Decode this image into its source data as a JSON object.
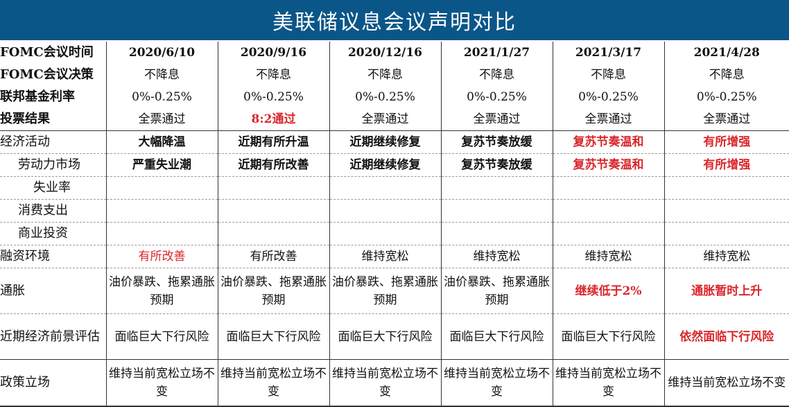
{
  "title": "美联储议息会议声明对比",
  "colors": {
    "header_bg": "#0b5689",
    "highlight": "#d9262b"
  },
  "rows": [
    {
      "label": "FOMC会议时间",
      "cls": "top",
      "cells": [
        {
          "t": "2020/6/10",
          "b": 1
        },
        {
          "t": "2020/9/16",
          "b": 1
        },
        {
          "t": "2020/12/16",
          "b": 1
        },
        {
          "t": "2021/1/27",
          "b": 1
        },
        {
          "t": "2021/3/17",
          "b": 1
        },
        {
          "t": "2021/4/28",
          "b": 1
        }
      ]
    },
    {
      "label": "FOMC会议决策",
      "cls": "top",
      "cells": [
        {
          "t": "不降息"
        },
        {
          "t": "不降息"
        },
        {
          "t": "不降息"
        },
        {
          "t": "不降息"
        },
        {
          "t": "不降息"
        },
        {
          "t": "不降息"
        }
      ]
    },
    {
      "label": "联邦基金利率",
      "cls": "top",
      "cells": [
        {
          "t": "0%-0.25%"
        },
        {
          "t": "0%-0.25%"
        },
        {
          "t": "0%-0.25%"
        },
        {
          "t": "0%-0.25%"
        },
        {
          "t": "0%-0.25%"
        },
        {
          "t": "0%-0.25%"
        }
      ]
    },
    {
      "label": "投票结果",
      "cls": "top sep",
      "cells": [
        {
          "t": "全票通过"
        },
        {
          "t": "8:2通过",
          "r": 1,
          "b": 1
        },
        {
          "t": "全票通过"
        },
        {
          "t": "全票通过"
        },
        {
          "t": "全票通过"
        },
        {
          "t": "全票通过"
        }
      ]
    },
    {
      "label": "经济活动",
      "cls": "r32",
      "cells": [
        {
          "t": "大幅降温",
          "b": 1
        },
        {
          "t": "近期有所升温",
          "b": 1
        },
        {
          "t": "近期继续修复",
          "b": 1
        },
        {
          "t": "复苏节奏放缓",
          "b": 1
        },
        {
          "t": "复苏节奏温和",
          "r": 1,
          "b": 1
        },
        {
          "t": "有所增强",
          "r": 1,
          "b": 1
        }
      ]
    },
    {
      "label": "劳动力市场",
      "cls": "r32",
      "indent": "ind1",
      "cells": [
        {
          "t": "严重失业潮",
          "b": 1
        },
        {
          "t": "近期有所改善",
          "b": 1
        },
        {
          "t": "近期继续修复",
          "b": 1
        },
        {
          "t": "复苏节奏放缓",
          "b": 1
        },
        {
          "t": "复苏节奏温和",
          "r": 1,
          "b": 1
        },
        {
          "t": "有所增强",
          "r": 1,
          "b": 1
        }
      ]
    },
    {
      "label": "失业率",
      "cls": "r32",
      "indent": "ind2",
      "cells": [
        {
          "t": ""
        },
        {
          "t": ""
        },
        {
          "t": ""
        },
        {
          "t": ""
        },
        {
          "t": ""
        },
        {
          "t": ""
        }
      ]
    },
    {
      "label": "消费支出",
      "cls": "r32",
      "indent": "ind1",
      "cells": [
        {
          "t": ""
        },
        {
          "t": ""
        },
        {
          "t": ""
        },
        {
          "t": ""
        },
        {
          "t": ""
        },
        {
          "t": ""
        }
      ]
    },
    {
      "label": "商业投资",
      "cls": "r32",
      "indent": "ind1",
      "cells": [
        {
          "t": ""
        },
        {
          "t": ""
        },
        {
          "t": ""
        },
        {
          "t": ""
        },
        {
          "t": ""
        },
        {
          "t": ""
        }
      ]
    },
    {
      "label": "融资环境",
      "cls": "r32",
      "cells": [
        {
          "t": "有所改善",
          "r": 1
        },
        {
          "t": "有所改善"
        },
        {
          "t": "维持宽松"
        },
        {
          "t": "维持宽松"
        },
        {
          "t": "维持宽松"
        },
        {
          "t": "维持宽松"
        }
      ]
    },
    {
      "label": "通胀",
      "cls": "r65",
      "cells": [
        {
          "t": "油价暴跌、拖累通胀预期"
        },
        {
          "t": "油价暴跌、拖累通胀预期"
        },
        {
          "t": "油价暴跌、拖累通胀预期"
        },
        {
          "t": "油价暴跌、拖累通胀预期"
        },
        {
          "t": "继续低于2%",
          "r": 1,
          "b": 1
        },
        {
          "t": "通胀暂时上升",
          "r": 1,
          "b": 1
        }
      ]
    },
    {
      "label": "近期经济前景评估",
      "cls": "r65 sep",
      "cells": [
        {
          "t": "面临巨大下行风险"
        },
        {
          "t": "面临巨大下行风险"
        },
        {
          "t": "面临巨大下行风险"
        },
        {
          "t": "面临巨大下行风险"
        },
        {
          "t": "面临巨大下行风险"
        },
        {
          "t": "依然面临下行风险",
          "r": 1,
          "b": 1
        }
      ]
    },
    {
      "label": "政策立场",
      "cls": "last",
      "cells": [
        {
          "t": "维持当前宽松立场不变"
        },
        {
          "t": "维持当前宽松立场不变"
        },
        {
          "t": "维持当前宽松立场不变"
        },
        {
          "t": "维持当前宽松立场不变"
        },
        {
          "t": "维持当前宽松立场不变"
        },
        {
          "t": "维持当前宽松立场不变"
        }
      ]
    }
  ]
}
